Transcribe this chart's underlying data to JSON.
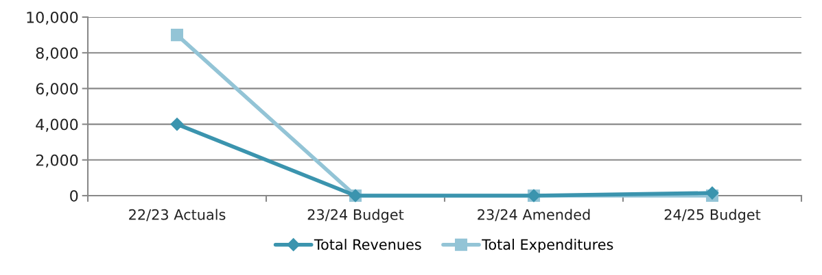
{
  "chart_data": {
    "type": "line",
    "categories": [
      "22/23 Actuals",
      "23/24 Budget",
      "23/24 Amended",
      "24/25 Budget"
    ],
    "series": [
      {
        "name": "Total Revenues",
        "color": "#3b94ae",
        "marker": "diamond",
        "values": [
          4000,
          0,
          0,
          150
        ]
      },
      {
        "name": "Total Expenditures",
        "color": "#93c4d6",
        "marker": "square",
        "values": [
          9000,
          0,
          0,
          0
        ]
      }
    ],
    "ylim": [
      0,
      10000
    ],
    "yticks": [
      {
        "value": 0,
        "label": "0"
      },
      {
        "value": 2000,
        "label": "2,000"
      },
      {
        "value": 4000,
        "label": "4,000"
      },
      {
        "value": 6000,
        "label": "6,000"
      },
      {
        "value": 8000,
        "label": "8,000"
      },
      {
        "value": 10000,
        "label": "10,000"
      }
    ],
    "grid": "y",
    "legend": "bottom",
    "line_style": "solid"
  }
}
